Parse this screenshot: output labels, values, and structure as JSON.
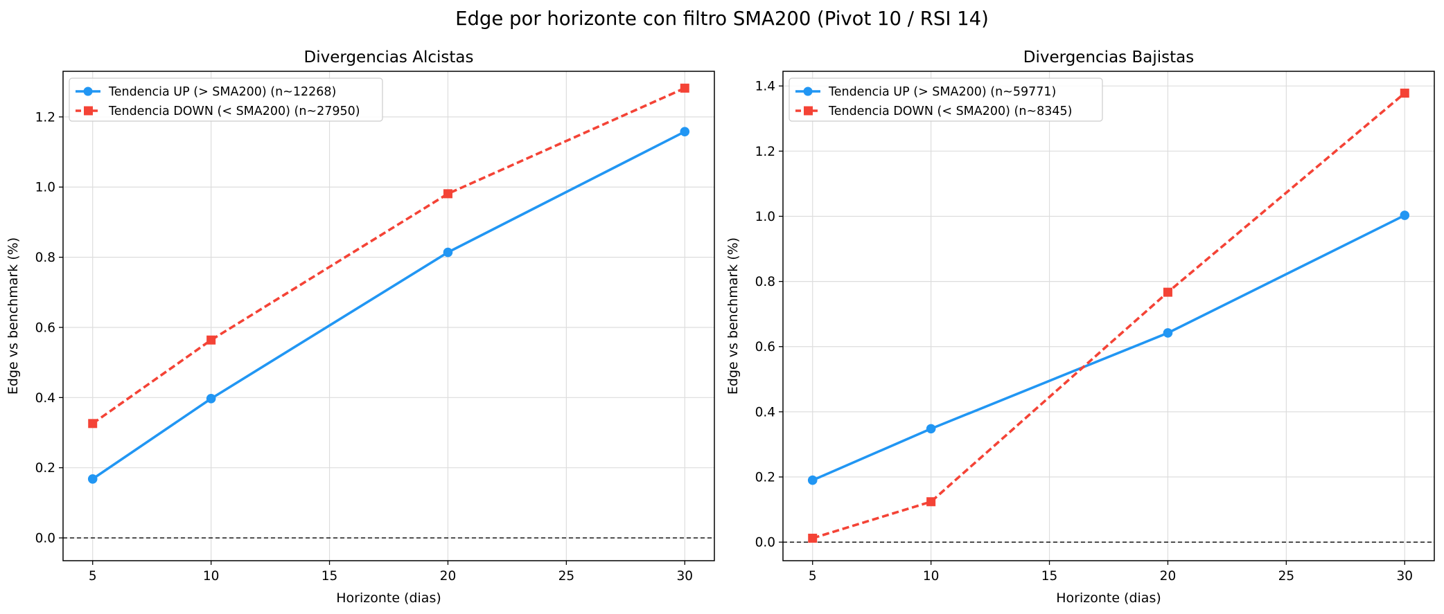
{
  "suptitle": "Edge por horizonte con filtro SMA200 (Pivot 10 / RSI 14)",
  "colors": {
    "up": "#2196f3",
    "down": "#f44336"
  },
  "chart_data": [
    {
      "type": "line",
      "title": "Divergencias Alcistas",
      "xlabel": "Horizonte (dias)",
      "ylabel": "Edge vs benchmark (%)",
      "x": [
        5,
        10,
        20,
        30
      ],
      "xlim": [
        3.75,
        31.25
      ],
      "ylim": [
        -0.065,
        1.33
      ],
      "xticks": [
        5,
        10,
        15,
        20,
        25,
        30
      ],
      "yticks": [
        0.0,
        0.2,
        0.4,
        0.6,
        0.8,
        1.0,
        1.2
      ],
      "grid": true,
      "legend": "upper-left",
      "reference_line": {
        "y": 0,
        "style": "dashed"
      },
      "series": [
        {
          "name": "Tendencia UP (> SMA200) (n~12268)",
          "values": [
            0.168,
            0.397,
            0.814,
            1.158
          ],
          "marker": "circle",
          "style": "solid",
          "color": "#2196f3"
        },
        {
          "name": "Tendencia DOWN (< SMA200) (n~27950)",
          "values": [
            0.326,
            0.564,
            0.981,
            1.282
          ],
          "marker": "square",
          "style": "dashed",
          "color": "#f44336"
        }
      ]
    },
    {
      "type": "line",
      "title": "Divergencias Bajistas",
      "xlabel": "Horizonte (dias)",
      "ylabel": "Edge vs benchmark (%)",
      "x": [
        5,
        10,
        20,
        30
      ],
      "xlim": [
        3.75,
        31.25
      ],
      "ylim": [
        -0.057,
        1.445
      ],
      "xticks": [
        5,
        10,
        15,
        20,
        25,
        30
      ],
      "yticks": [
        0.0,
        0.2,
        0.4,
        0.6,
        0.8,
        1.0,
        1.2,
        1.4
      ],
      "grid": true,
      "legend": "upper-left",
      "reference_line": {
        "y": 0,
        "style": "dashed"
      },
      "series": [
        {
          "name": "Tendencia UP (> SMA200) (n~59771)",
          "values": [
            0.19,
            0.348,
            0.642,
            1.003
          ],
          "marker": "circle",
          "style": "solid",
          "color": "#2196f3"
        },
        {
          "name": "Tendencia DOWN (< SMA200) (n~8345)",
          "values": [
            0.012,
            0.124,
            0.767,
            1.378
          ],
          "marker": "square",
          "style": "dashed",
          "color": "#f44336"
        }
      ]
    }
  ]
}
